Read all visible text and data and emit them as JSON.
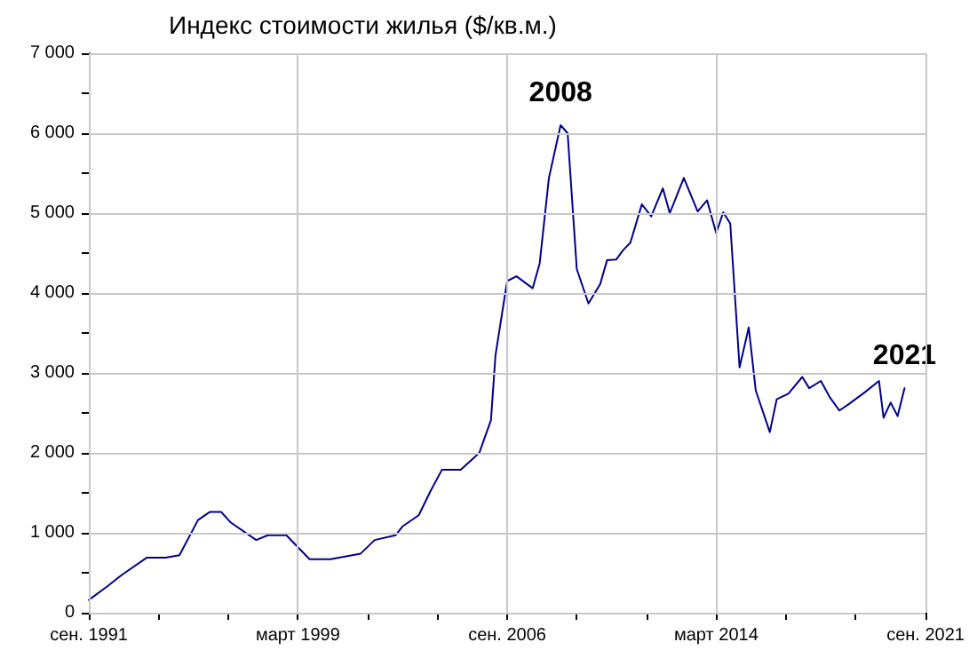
{
  "chart_data": {
    "type": "line",
    "title": "Индекс стоимости жилья ($/кв.м.)",
    "x": [
      "1991-09",
      "1992-05",
      "1992-11",
      "1993-10",
      "1994-06",
      "1994-12",
      "1995-08",
      "1996-01",
      "1996-06",
      "1996-10",
      "1997-09",
      "1998-02",
      "1998-10",
      "1999-08",
      "2000-05",
      "2001-06",
      "2001-12",
      "2002-09",
      "2002-12",
      "2003-07",
      "2003-12",
      "2004-05",
      "2005-01",
      "2005-09",
      "2006-02",
      "2006-04",
      "2006-09",
      "2007-01",
      "2007-08",
      "2007-11",
      "2008-03",
      "2008-08",
      "2008-11",
      "2009-03",
      "2009-08",
      "2010-01",
      "2010-04",
      "2010-08",
      "2010-11",
      "2011-02",
      "2011-07",
      "2011-11",
      "2012-04",
      "2012-07",
      "2013-01",
      "2013-07",
      "2013-11",
      "2014-03",
      "2014-06",
      "2014-09",
      "2015-01",
      "2015-05",
      "2015-08",
      "2016-02",
      "2016-05",
      "2016-10",
      "2017-04",
      "2017-07",
      "2017-12",
      "2018-04",
      "2018-08",
      "2018-12",
      "2019-07",
      "2020-01",
      "2020-03",
      "2020-06",
      "2020-09",
      "2020-12"
    ],
    "series": [
      {
        "color": "#00008b",
        "values": [
          160,
          330,
          470,
          690,
          690,
          720,
          1160,
          1260,
          1260,
          1130,
          910,
          970,
          970,
          670,
          670,
          740,
          910,
          970,
          1080,
          1220,
          1520,
          1790,
          1790,
          2000,
          2410,
          3220,
          4150,
          4210,
          4060,
          4370,
          5440,
          6100,
          6000,
          4300,
          3870,
          4110,
          4410,
          4420,
          4540,
          4630,
          5110,
          4960,
          5310,
          5000,
          5440,
          5020,
          5160,
          4750,
          5010,
          4870,
          3070,
          3570,
          2780,
          2260,
          2670,
          2740,
          2950,
          2810,
          2900,
          2690,
          2530,
          2610,
          2760,
          2900,
          2440,
          2630,
          2460,
          2810
        ]
      }
    ],
    "xlim": [
      "1991-09",
      "2021-09"
    ],
    "xticks": [
      {
        "value": "1991-09",
        "label": "сен. 1991"
      },
      {
        "value": "1994-03",
        "label": null
      },
      {
        "value": "1996-09",
        "label": null
      },
      {
        "value": "1999-03",
        "label": "март 1999"
      },
      {
        "value": "2001-09",
        "label": null
      },
      {
        "value": "2004-03",
        "label": null
      },
      {
        "value": "2006-09",
        "label": "сен. 2006"
      },
      {
        "value": "2009-03",
        "label": null
      },
      {
        "value": "2011-09",
        "label": null
      },
      {
        "value": "2014-03",
        "label": "март 2014"
      },
      {
        "value": "2016-09",
        "label": null
      },
      {
        "value": "2019-03",
        "label": null
      },
      {
        "value": "2021-09",
        "label": "сен. 2021"
      }
    ],
    "ylim": [
      0,
      7000
    ],
    "yticks": [
      0,
      {
        "value": 500,
        "label": null
      },
      {
        "value": 1000,
        "label": "1 000"
      },
      {
        "value": 1500,
        "label": null
      },
      {
        "value": 2000,
        "label": "2 000"
      },
      {
        "value": 2500,
        "label": null
      },
      {
        "value": 3000,
        "label": "3 000"
      },
      {
        "value": 3500,
        "label": null
      },
      {
        "value": 4000,
        "label": "4 000"
      },
      {
        "value": 4500,
        "label": null
      },
      {
        "value": 5000,
        "label": "5 000"
      },
      {
        "value": 5500,
        "label": null
      },
      {
        "value": 6000,
        "label": "6 000"
      },
      {
        "value": 6500,
        "label": null
      },
      {
        "value": 7000,
        "label": "7 000"
      }
    ],
    "annotations": [
      {
        "text": "2008",
        "x": "2008-08",
        "y": 6100
      },
      {
        "text": "2021",
        "x": "2020-12",
        "y": 2810
      }
    ],
    "grid": true,
    "marker": "none",
    "line_style": "solid"
  }
}
